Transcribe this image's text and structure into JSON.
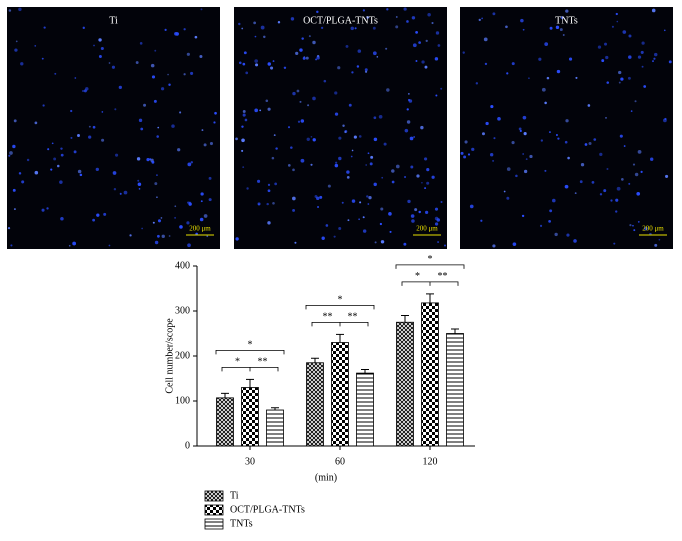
{
  "images": [
    {
      "label": "Ti",
      "scale_bar": "200 μm"
    },
    {
      "label": "OCT/PLGA-TNTs",
      "scale_bar": "200 μm"
    },
    {
      "label": "TNTs",
      "scale_bar": "200 μm"
    }
  ],
  "chart_data": {
    "type": "bar",
    "ylabel": "Cell number/scope",
    "xlabel": "(min)",
    "categories": [
      "30",
      "60",
      "120"
    ],
    "series": [
      {
        "name": "Ti",
        "color": "#000000",
        "pattern": "cross",
        "values": [
          107,
          185,
          275
        ],
        "errors": [
          10,
          10,
          15
        ]
      },
      {
        "name": "OCT/PLGA-TNTs",
        "color": "#000000",
        "pattern": "checker",
        "values": [
          130,
          230,
          318
        ],
        "errors": [
          18,
          18,
          20
        ]
      },
      {
        "name": "TNTs",
        "color": "#000000",
        "pattern": "horizontal",
        "values": [
          80,
          162,
          250
        ],
        "errors": [
          5,
          8,
          10
        ]
      }
    ],
    "significance": [
      {
        "outer": "*",
        "left": "*",
        "right": "**"
      },
      {
        "outer": "*",
        "left": "**",
        "right": "**"
      },
      {
        "outer": "*",
        "left": "*",
        "right": "**"
      }
    ],
    "ylim": [
      0,
      400
    ],
    "yticks": [
      0,
      100,
      200,
      300,
      400
    ]
  }
}
